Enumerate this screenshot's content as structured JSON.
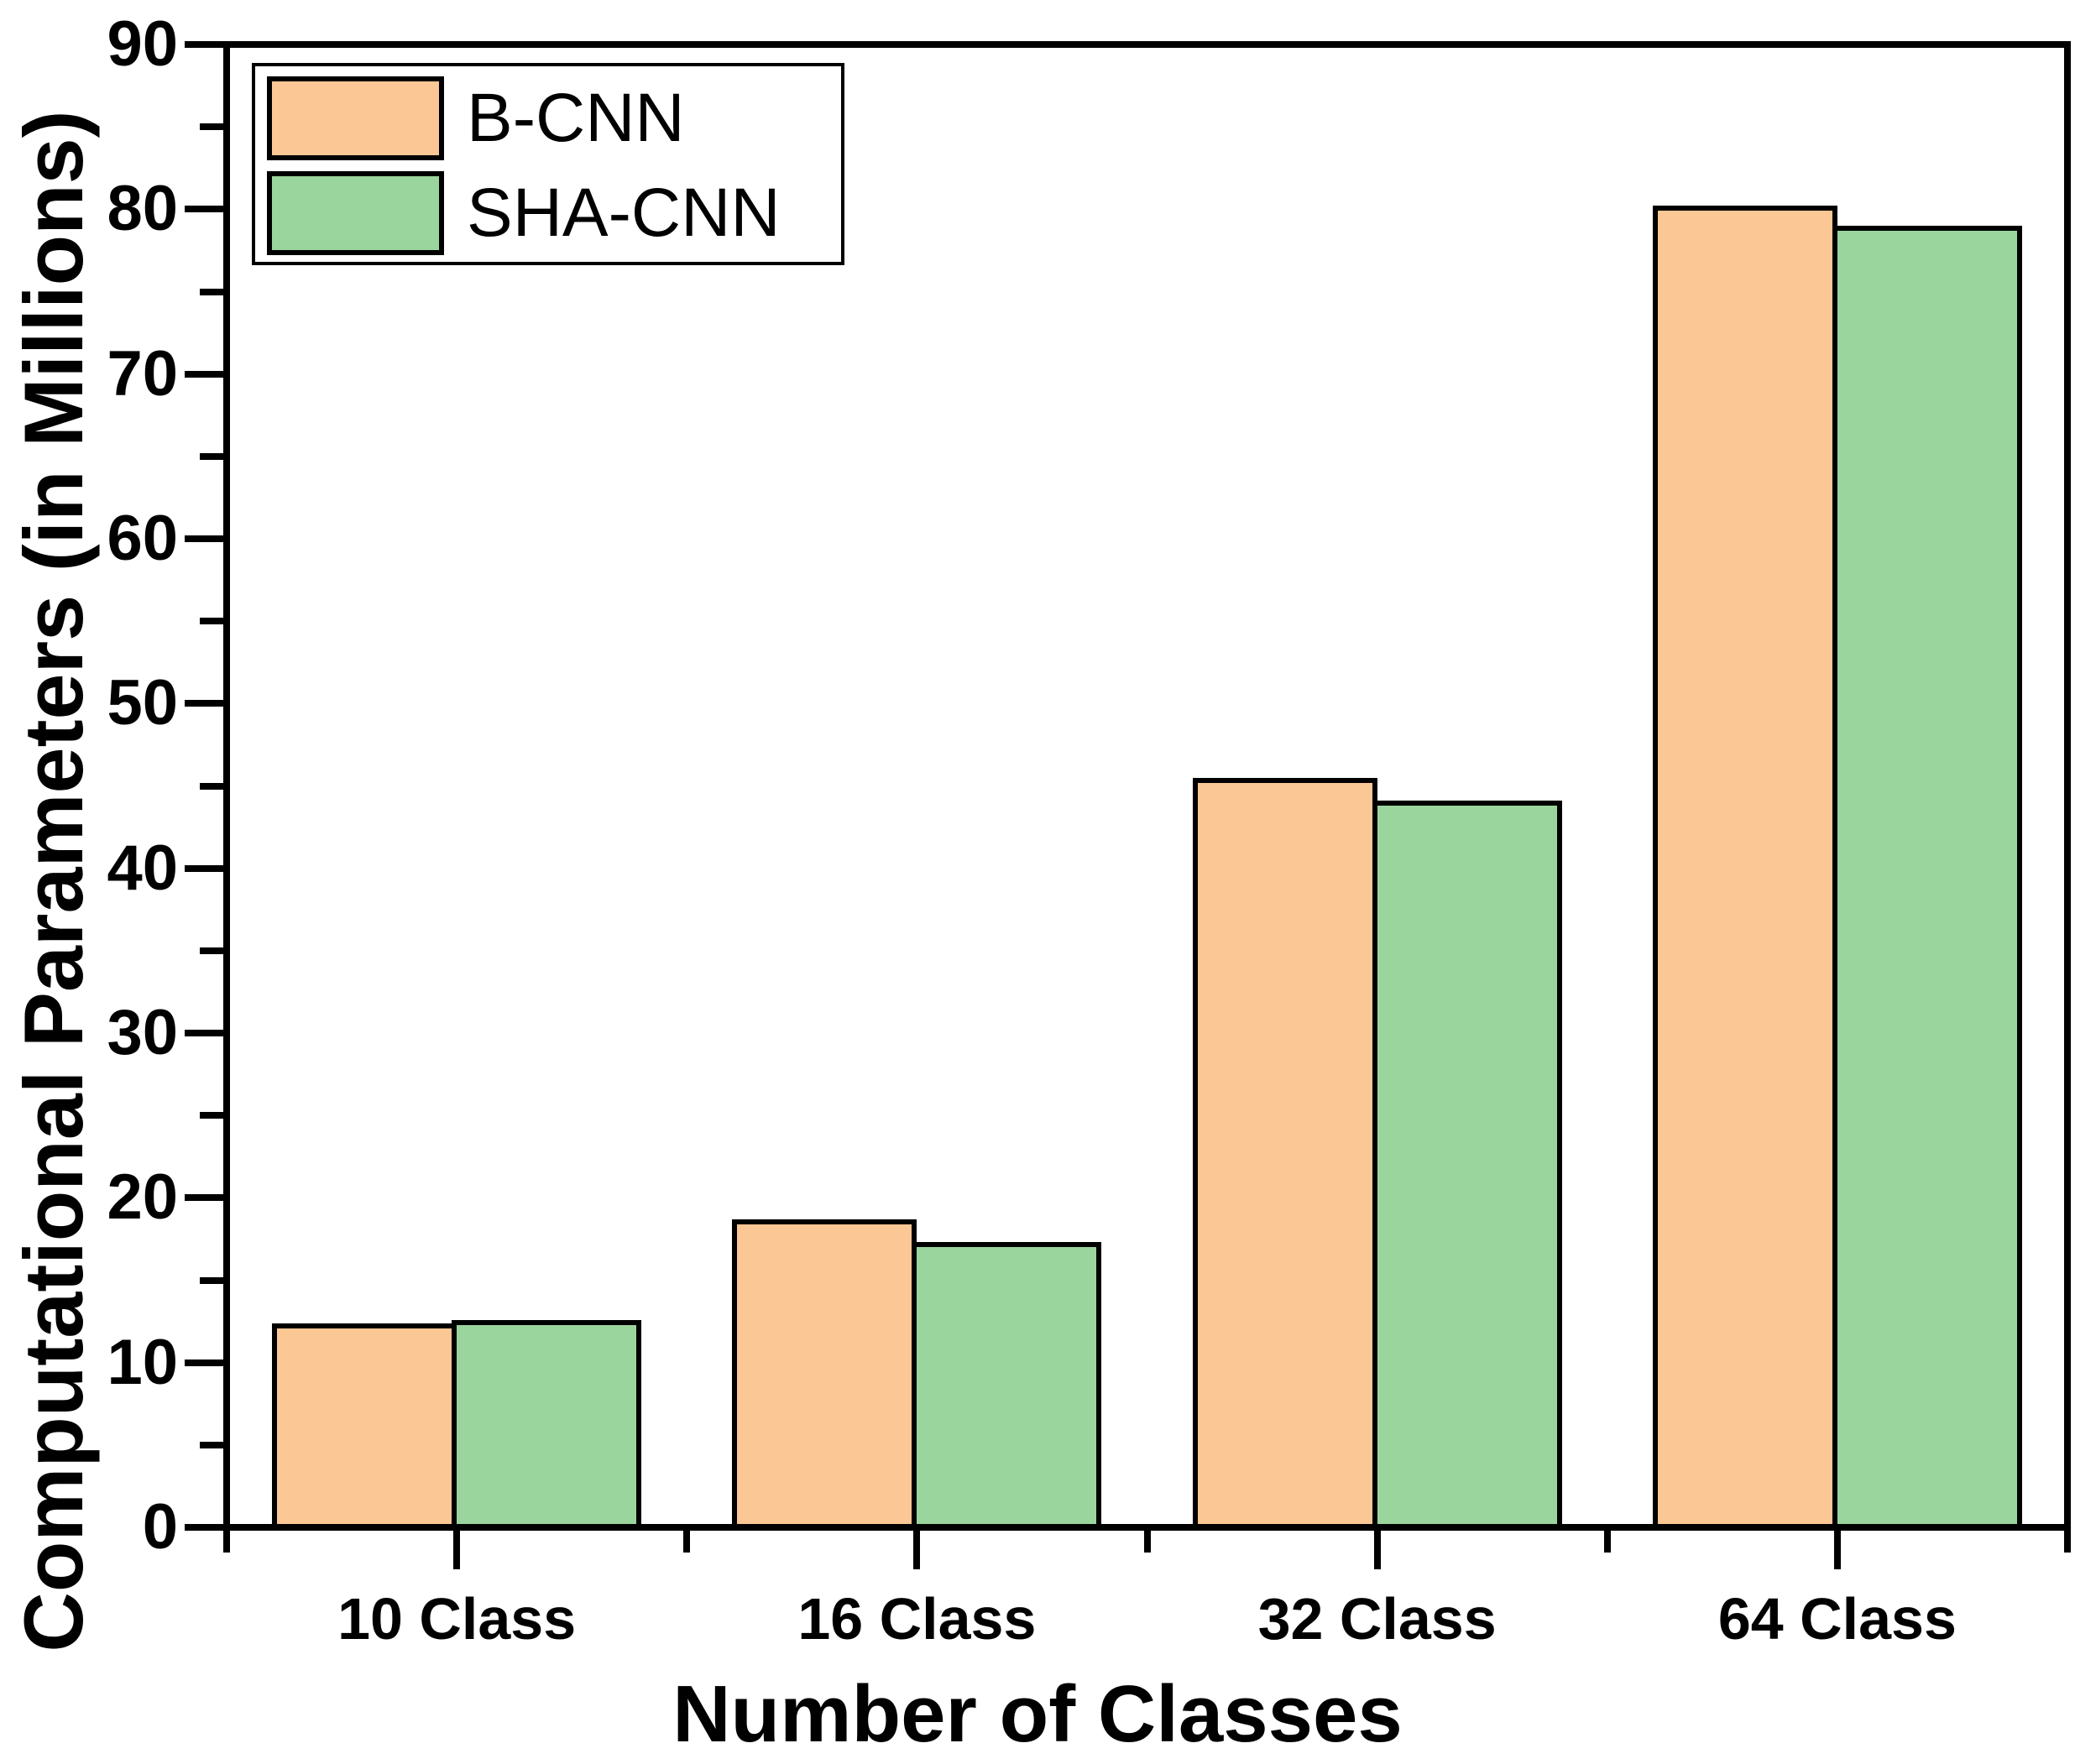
{
  "chart_data": {
    "type": "bar",
    "title": "",
    "categories": [
      "10 Class",
      "16 Class",
      "32 Class",
      "64 Class"
    ],
    "series": [
      {
        "name": "B-CNN",
        "color": "#FBC795",
        "values": [
          12.4,
          18.7,
          45.5,
          80.2
        ]
      },
      {
        "name": "SHA-CNN",
        "color": "#9AD59D",
        "values": [
          12.6,
          17.3,
          44.1,
          79.0
        ]
      }
    ],
    "xlabel": "Number of Classes",
    "ylabel": "Computational Parameters (in Millions)",
    "ylim": [
      0,
      90
    ],
    "y_major_step": 10,
    "y_minor_step": 5,
    "y_tick_labels": [
      "0",
      "10",
      "20",
      "30",
      "40",
      "50",
      "60",
      "70",
      "80",
      "90"
    ],
    "grid": false,
    "legend_position": "top-left",
    "bar_border_color": "#000000",
    "axis_color": "#000000",
    "background": "#FFFFFF"
  }
}
